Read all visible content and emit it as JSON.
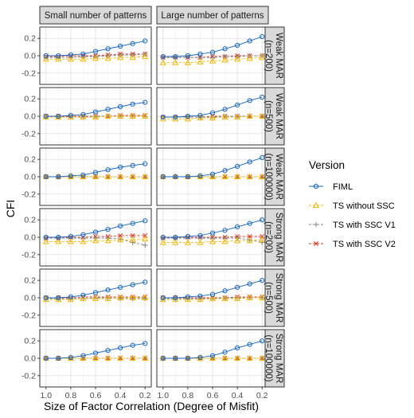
{
  "chart_data": {
    "type": "line",
    "xlabel": "Size of Factor Correlation (Degree of Misfit)",
    "ylabel": "CFI",
    "xlim": [
      1.05,
      0.15
    ],
    "ylim": [
      -0.33,
      0.33
    ],
    "x_ticks": [
      1.0,
      0.8,
      0.6,
      0.4,
      0.2
    ],
    "x_tick_labels": [
      "1.0",
      "0.8",
      "0.6",
      "0.4",
      "0.2"
    ],
    "y_ticks": [
      0.2,
      0.0,
      -0.2
    ],
    "y_tick_labels": [
      "0.2",
      "0.0",
      "-0.2"
    ],
    "x": [
      1.0,
      0.9,
      0.8,
      0.7,
      0.6,
      0.5,
      0.4,
      0.3,
      0.2
    ],
    "columns": [
      "Small number of patterns",
      "Large number of patterns"
    ],
    "rows": [
      [
        "Weak MAR",
        "(n=200)"
      ],
      [
        "Weak MAR",
        "(n=500)"
      ],
      [
        "Weak MAR",
        "(n=100000)"
      ],
      [
        "Strong MAR",
        "(n=200)"
      ],
      [
        "Strong MAR",
        "(n=500)"
      ],
      [
        "Strong MAR",
        "(n=100000)"
      ]
    ],
    "legend": {
      "title": "Version",
      "position": "right",
      "entries": [
        {
          "label": "FIML",
          "color": "#1565C0",
          "shape": "circle",
          "dash": "solid"
        },
        {
          "label": "TS  without SSC",
          "color": "#F2B600",
          "shape": "triangle",
          "dash": "dashed"
        },
        {
          "label": "TS with SSC V1",
          "color": "#7F7F7F",
          "shape": "plus",
          "dash": "dashed"
        },
        {
          "label": "TS with SSC V2",
          "color": "#D9341C",
          "shape": "cross",
          "dash": "dashed"
        }
      ]
    },
    "panels": [
      {
        "row": 0,
        "col": 0,
        "series": [
          {
            "name": "FIML",
            "values": [
              0.0,
              0.0,
              0.01,
              0.02,
              0.05,
              0.08,
              0.11,
              0.14,
              0.17
            ]
          },
          {
            "name": "TS  without SSC",
            "values": [
              -0.04,
              -0.04,
              -0.04,
              -0.04,
              -0.03,
              -0.03,
              -0.02,
              -0.02,
              -0.01
            ]
          },
          {
            "name": "TS with SSC V1",
            "values": [
              -0.02,
              -0.02,
              -0.02,
              -0.01,
              -0.01,
              0.0,
              0.01,
              0.01,
              0.02
            ]
          },
          {
            "name": "TS with SSC V2",
            "values": [
              -0.01,
              -0.01,
              0.0,
              0.0,
              0.0,
              0.01,
              0.02,
              0.02,
              0.02
            ]
          }
        ]
      },
      {
        "row": 0,
        "col": 1,
        "series": [
          {
            "name": "FIML",
            "values": [
              -0.01,
              -0.01,
              0.0,
              0.02,
              0.04,
              0.08,
              0.12,
              0.17,
              0.22
            ]
          },
          {
            "name": "TS  without SSC",
            "values": [
              -0.08,
              -0.08,
              -0.08,
              -0.07,
              -0.06,
              -0.05,
              -0.04,
              -0.03,
              -0.02
            ]
          },
          {
            "name": "TS with SSC V1",
            "values": [
              -0.02,
              -0.02,
              -0.02,
              -0.02,
              -0.02,
              -0.01,
              -0.01,
              0.0,
              0.0
            ]
          },
          {
            "name": "TS with SSC V2",
            "values": [
              -0.02,
              -0.02,
              -0.02,
              -0.02,
              -0.01,
              -0.01,
              0.0,
              0.0,
              0.0
            ]
          }
        ]
      },
      {
        "row": 1,
        "col": 0,
        "series": [
          {
            "name": "FIML",
            "values": [
              0.0,
              0.0,
              0.01,
              0.02,
              0.05,
              0.08,
              0.11,
              0.14,
              0.16
            ]
          },
          {
            "name": "TS  without SSC",
            "values": [
              -0.01,
              -0.01,
              -0.01,
              -0.01,
              -0.01,
              0.0,
              0.0,
              0.0,
              0.0
            ]
          },
          {
            "name": "TS with SSC V1",
            "values": [
              -0.01,
              -0.01,
              -0.01,
              -0.01,
              0.0,
              0.0,
              0.0,
              0.0,
              0.0
            ]
          },
          {
            "name": "TS with SSC V2",
            "values": [
              0.0,
              0.0,
              0.0,
              0.0,
              0.0,
              0.0,
              0.01,
              0.01,
              0.01
            ]
          }
        ]
      },
      {
        "row": 1,
        "col": 1,
        "series": [
          {
            "name": "FIML",
            "values": [
              -0.01,
              -0.01,
              0.0,
              0.01,
              0.04,
              0.08,
              0.13,
              0.18,
              0.22
            ]
          },
          {
            "name": "TS  without SSC",
            "values": [
              -0.03,
              -0.03,
              -0.03,
              -0.02,
              -0.02,
              -0.01,
              -0.01,
              0.0,
              0.0
            ]
          },
          {
            "name": "TS with SSC V1",
            "values": [
              -0.01,
              -0.01,
              -0.01,
              -0.01,
              -0.01,
              0.0,
              0.0,
              0.0,
              0.0
            ]
          },
          {
            "name": "TS with SSC V2",
            "values": [
              -0.01,
              -0.01,
              -0.01,
              -0.01,
              0.0,
              0.0,
              0.0,
              0.0,
              0.0
            ]
          }
        ]
      },
      {
        "row": 2,
        "col": 0,
        "series": [
          {
            "name": "FIML",
            "values": [
              0.0,
              0.0,
              0.01,
              0.02,
              0.05,
              0.08,
              0.11,
              0.13,
              0.15
            ]
          },
          {
            "name": "TS  without SSC",
            "values": [
              0.0,
              0.0,
              0.0,
              0.0,
              0.0,
              0.0,
              0.0,
              0.0,
              0.0
            ]
          },
          {
            "name": "TS with SSC V1",
            "values": [
              0.0,
              0.0,
              0.0,
              0.0,
              0.0,
              0.0,
              0.0,
              0.0,
              0.0
            ]
          },
          {
            "name": "TS with SSC V2",
            "values": [
              0.0,
              0.0,
              0.0,
              0.0,
              0.0,
              0.0,
              0.0,
              0.0,
              0.0
            ]
          }
        ]
      },
      {
        "row": 2,
        "col": 1,
        "series": [
          {
            "name": "FIML",
            "values": [
              0.0,
              0.0,
              0.0,
              0.01,
              0.03,
              0.07,
              0.12,
              0.17,
              0.22
            ]
          },
          {
            "name": "TS  without SSC",
            "values": [
              0.0,
              0.0,
              0.0,
              0.0,
              0.0,
              0.0,
              0.0,
              0.0,
              0.0
            ]
          },
          {
            "name": "TS with SSC V1",
            "values": [
              0.0,
              0.0,
              0.0,
              0.0,
              0.0,
              0.0,
              0.0,
              0.0,
              0.0
            ]
          },
          {
            "name": "TS with SSC V2",
            "values": [
              0.0,
              0.0,
              0.0,
              0.0,
              0.0,
              0.0,
              0.0,
              0.0,
              0.0
            ]
          }
        ]
      },
      {
        "row": 3,
        "col": 0,
        "series": [
          {
            "name": "FIML",
            "values": [
              0.0,
              0.0,
              0.01,
              0.03,
              0.06,
              0.09,
              0.13,
              0.16,
              0.19
            ]
          },
          {
            "name": "TS  without SSC",
            "values": [
              -0.05,
              -0.05,
              -0.05,
              -0.05,
              -0.04,
              -0.04,
              -0.03,
              -0.03,
              -0.02
            ]
          },
          {
            "name": "TS with SSC V1",
            "values": [
              -0.01,
              -0.01,
              -0.01,
              -0.01,
              -0.01,
              -0.01,
              -0.02,
              -0.06,
              -0.09
            ]
          },
          {
            "name": "TS with SSC V2",
            "values": [
              -0.01,
              -0.01,
              0.0,
              0.0,
              0.01,
              0.01,
              0.02,
              0.02,
              0.02
            ]
          }
        ]
      },
      {
        "row": 3,
        "col": 1,
        "series": [
          {
            "name": "FIML",
            "values": [
              0.0,
              0.0,
              0.01,
              0.02,
              0.05,
              0.08,
              0.12,
              0.16,
              0.2
            ]
          },
          {
            "name": "TS  without SSC",
            "values": [
              -0.06,
              -0.06,
              -0.06,
              -0.06,
              -0.05,
              -0.05,
              -0.04,
              -0.04,
              -0.03
            ]
          },
          {
            "name": "TS with SSC V1",
            "values": [
              -0.01,
              -0.01,
              -0.01,
              -0.01,
              -0.01,
              -0.01,
              -0.01,
              -0.03,
              -0.06
            ]
          },
          {
            "name": "TS with SSC V2",
            "values": [
              -0.01,
              -0.01,
              0.0,
              0.0,
              0.0,
              0.0,
              0.01,
              0.01,
              0.01
            ]
          }
        ]
      },
      {
        "row": 4,
        "col": 0,
        "series": [
          {
            "name": "FIML",
            "values": [
              0.0,
              0.0,
              0.01,
              0.03,
              0.06,
              0.09,
              0.12,
              0.15,
              0.18
            ]
          },
          {
            "name": "TS  without SSC",
            "values": [
              -0.02,
              -0.02,
              -0.02,
              -0.01,
              -0.01,
              -0.01,
              0.0,
              0.0,
              0.0
            ]
          },
          {
            "name": "TS with SSC V1",
            "values": [
              -0.01,
              -0.01,
              -0.01,
              -0.01,
              0.0,
              0.0,
              -0.01,
              -0.01,
              -0.01
            ]
          },
          {
            "name": "TS with SSC V2",
            "values": [
              0.0,
              0.0,
              0.0,
              0.01,
              0.01,
              0.01,
              0.01,
              0.01,
              0.01
            ]
          }
        ]
      },
      {
        "row": 4,
        "col": 1,
        "series": [
          {
            "name": "FIML",
            "values": [
              0.0,
              0.0,
              0.01,
              0.02,
              0.04,
              0.08,
              0.12,
              0.16,
              0.2
            ]
          },
          {
            "name": "TS  without SSC",
            "values": [
              -0.02,
              -0.02,
              -0.02,
              -0.02,
              -0.01,
              -0.01,
              -0.01,
              0.0,
              0.0
            ]
          },
          {
            "name": "TS with SSC V1",
            "values": [
              -0.01,
              -0.01,
              -0.01,
              -0.01,
              -0.01,
              0.0,
              0.0,
              0.0,
              0.0
            ]
          },
          {
            "name": "TS with SSC V2",
            "values": [
              0.0,
              0.0,
              0.0,
              0.0,
              0.0,
              0.0,
              0.01,
              0.01,
              0.01
            ]
          }
        ]
      },
      {
        "row": 5,
        "col": 0,
        "series": [
          {
            "name": "FIML",
            "values": [
              0.0,
              0.0,
              0.01,
              0.03,
              0.06,
              0.09,
              0.12,
              0.15,
              0.17
            ]
          },
          {
            "name": "TS  without SSC",
            "values": [
              0.0,
              0.0,
              0.0,
              0.0,
              0.0,
              0.0,
              0.0,
              0.0,
              0.0
            ]
          },
          {
            "name": "TS with SSC V1",
            "values": [
              0.0,
              0.0,
              0.0,
              0.0,
              0.0,
              0.0,
              0.0,
              0.0,
              0.0
            ]
          },
          {
            "name": "TS with SSC V2",
            "values": [
              0.0,
              0.0,
              0.0,
              0.0,
              0.0,
              0.0,
              0.0,
              0.0,
              0.0
            ]
          }
        ]
      },
      {
        "row": 5,
        "col": 1,
        "series": [
          {
            "name": "FIML",
            "values": [
              0.0,
              0.0,
              0.0,
              0.01,
              0.03,
              0.07,
              0.12,
              0.16,
              0.2
            ]
          },
          {
            "name": "TS  without SSC",
            "values": [
              0.0,
              0.0,
              0.0,
              0.0,
              0.0,
              0.0,
              0.0,
              0.0,
              0.0
            ]
          },
          {
            "name": "TS with SSC V1",
            "values": [
              0.0,
              0.0,
              0.0,
              0.0,
              0.0,
              0.0,
              0.0,
              0.0,
              0.0
            ]
          },
          {
            "name": "TS with SSC V2",
            "values": [
              0.0,
              0.0,
              0.0,
              0.0,
              0.0,
              0.0,
              0.0,
              0.0,
              0.0
            ]
          }
        ]
      }
    ]
  }
}
